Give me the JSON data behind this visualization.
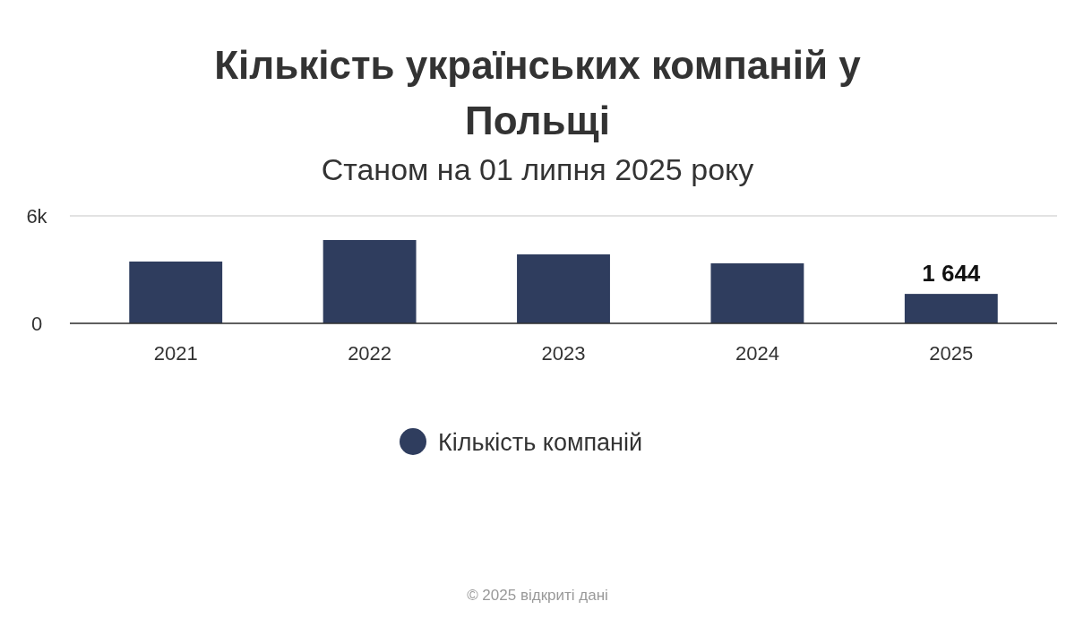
{
  "chart_data": {
    "type": "bar",
    "title": "Кількість українських компаній у Польщі",
    "subtitle": "Станом на 01 липня 2025 року",
    "categories": [
      "2021",
      "2022",
      "2023",
      "2024",
      "2025"
    ],
    "series": [
      {
        "name": "Кількість компаній",
        "color": "#2f3d5e",
        "values": [
          3450,
          4650,
          3850,
          3350,
          1644
        ],
        "value_labels": [
          null,
          null,
          null,
          null,
          "1 644"
        ]
      }
    ],
    "ylim": [
      0,
      6000
    ],
    "yticks": [
      0,
      {
        "value": 6000,
        "label": "6k"
      }
    ],
    "grid": "y",
    "legend": "bottom",
    "annotations": [
      "© 2025 відкриті дані"
    ]
  }
}
